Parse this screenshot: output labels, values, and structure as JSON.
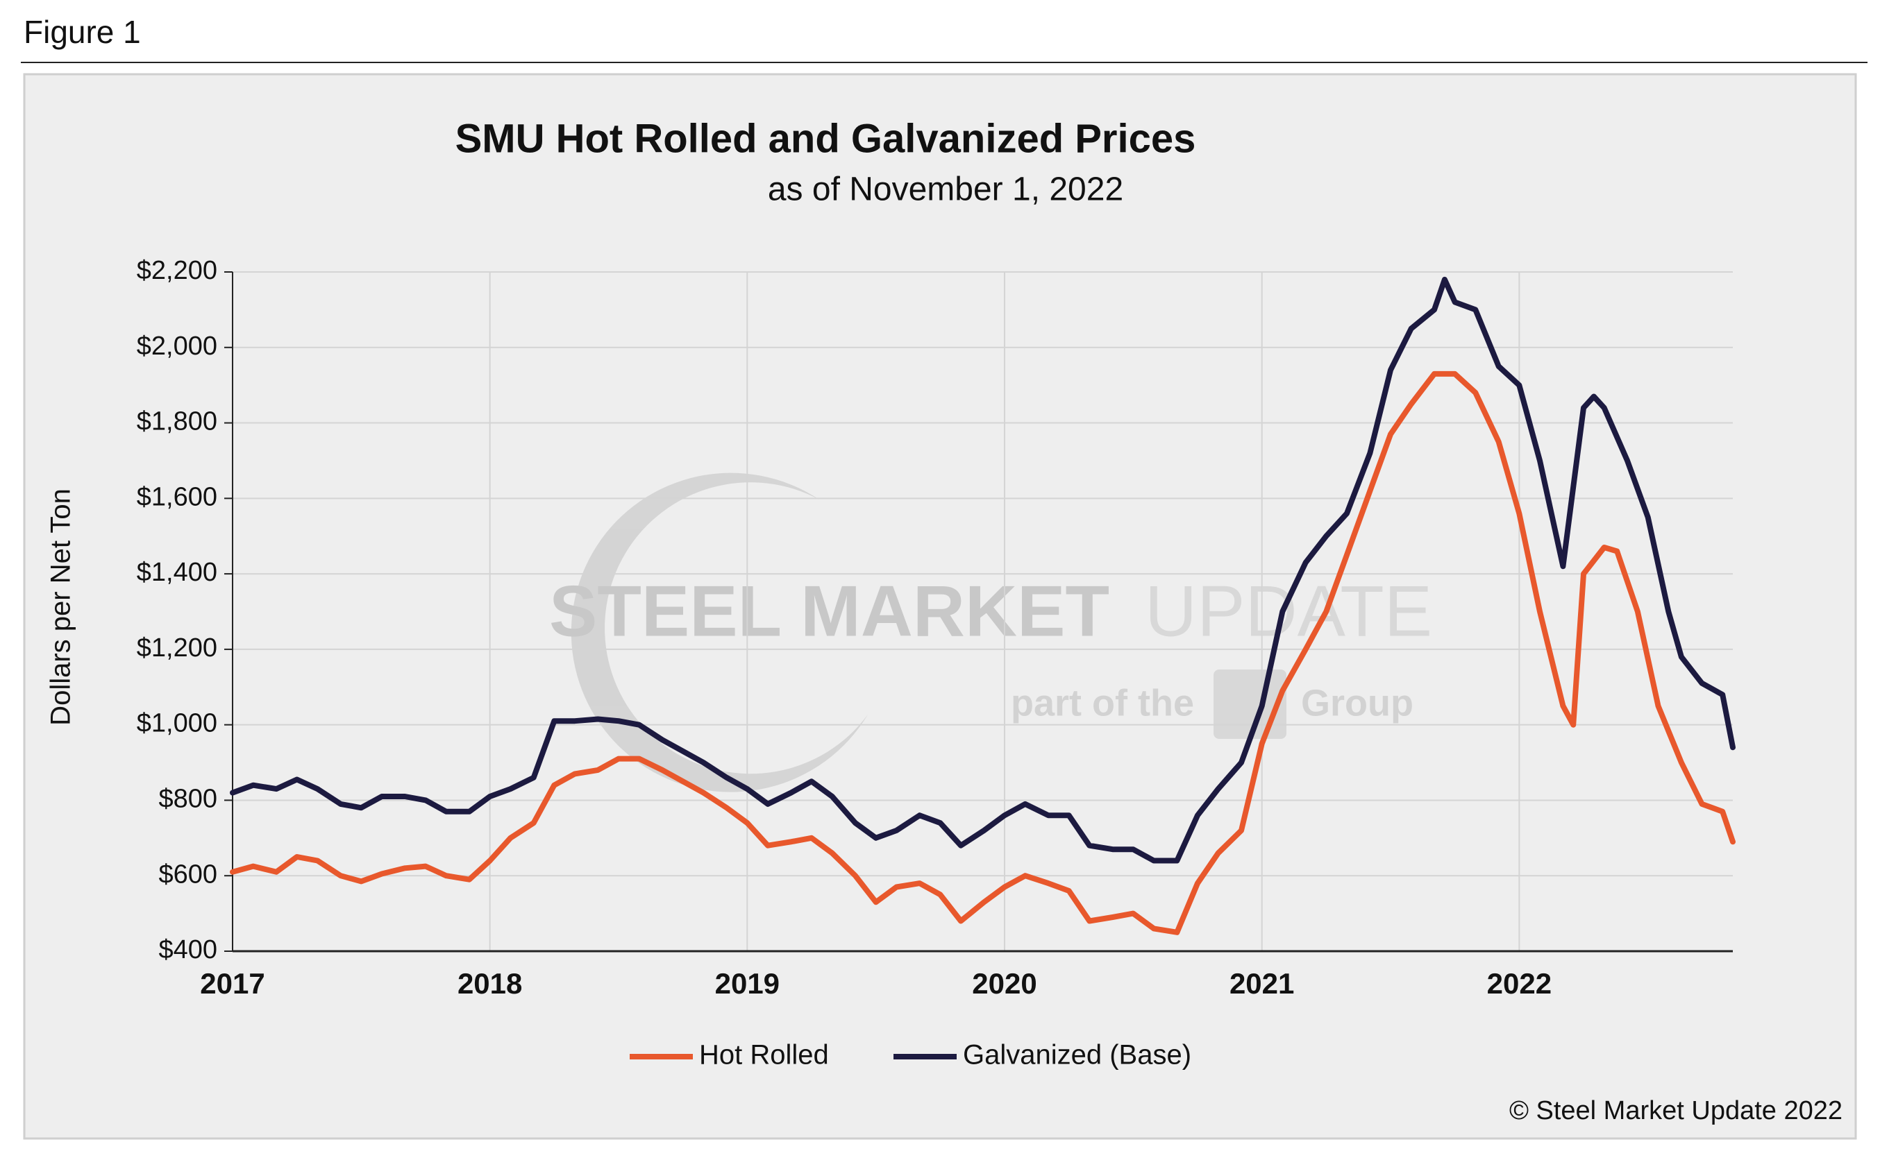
{
  "figure_label": "Figure 1",
  "credit": "© Steel Market Update 2022",
  "watermark": [
    "STEEL MARKET",
    "UPDATE"
  ],
  "watermark_tagline": [
    "part of the",
    "Group"
  ],
  "chart_data": {
    "type": "line",
    "title": "SMU Hot Rolled and Galvanized Prices",
    "subtitle": "as of November 1, 2022",
    "y_label": "Dollars per Net Ton",
    "xlim": [
      2017,
      2022.83
    ],
    "xticks": [
      2017,
      2018,
      2019,
      2020,
      2021,
      2022
    ],
    "ylim": [
      400,
      2200
    ],
    "yticks": [
      {
        "value": 400,
        "label": "$400"
      },
      {
        "value": 600,
        "label": "$600"
      },
      {
        "value": 800,
        "label": "$800"
      },
      {
        "value": 1000,
        "label": "$1,000"
      },
      {
        "value": 1200,
        "label": "$1,200"
      },
      {
        "value": 1400,
        "label": "$1,400"
      },
      {
        "value": 1600,
        "label": "$1,600"
      },
      {
        "value": 1800,
        "label": "$1,800"
      },
      {
        "value": 2000,
        "label": "$2,000"
      },
      {
        "value": 2200,
        "label": "$2,200"
      }
    ],
    "grid": true,
    "legend": "bottom",
    "series": [
      {
        "name": "Hot Rolled",
        "color": "#e8582c",
        "x": [
          2017.0,
          2017.08,
          2017.17,
          2017.25,
          2017.33,
          2017.42,
          2017.5,
          2017.58,
          2017.67,
          2017.75,
          2017.83,
          2017.92,
          2018.0,
          2018.08,
          2018.17,
          2018.25,
          2018.33,
          2018.42,
          2018.5,
          2018.58,
          2018.67,
          2018.75,
          2018.83,
          2018.92,
          2019.0,
          2019.08,
          2019.17,
          2019.25,
          2019.33,
          2019.42,
          2019.5,
          2019.58,
          2019.67,
          2019.75,
          2019.83,
          2019.92,
          2020.0,
          2020.08,
          2020.17,
          2020.25,
          2020.33,
          2020.42,
          2020.5,
          2020.58,
          2020.67,
          2020.75,
          2020.83,
          2020.92,
          2021.0,
          2021.08,
          2021.17,
          2021.25,
          2021.33,
          2021.42,
          2021.5,
          2021.58,
          2021.67,
          2021.75,
          2021.83,
          2021.92,
          2022.0,
          2022.08,
          2022.17,
          2022.21,
          2022.25,
          2022.33,
          2022.38,
          2022.46,
          2022.54,
          2022.63,
          2022.71,
          2022.75,
          2022.79,
          2022.83
        ],
        "values": [
          610,
          625,
          610,
          650,
          640,
          600,
          585,
          605,
          620,
          625,
          600,
          590,
          640,
          700,
          740,
          840,
          870,
          880,
          910,
          910,
          880,
          850,
          820,
          780,
          740,
          680,
          690,
          700,
          660,
          600,
          530,
          570,
          580,
          550,
          480,
          530,
          570,
          600,
          580,
          560,
          480,
          490,
          500,
          460,
          450,
          580,
          660,
          720,
          950,
          1090,
          1200,
          1300,
          1450,
          1620,
          1770,
          1850,
          1930,
          1930,
          1880,
          1750,
          1560,
          1300,
          1050,
          1000,
          1400,
          1470,
          1460,
          1300,
          1050,
          900,
          790,
          780,
          770,
          690
        ]
      },
      {
        "name": "Galvanized (Base)",
        "color": "#1c1a40",
        "x": [
          2017.0,
          2017.08,
          2017.17,
          2017.25,
          2017.33,
          2017.42,
          2017.5,
          2017.58,
          2017.67,
          2017.75,
          2017.83,
          2017.92,
          2018.0,
          2018.08,
          2018.17,
          2018.25,
          2018.33,
          2018.42,
          2018.5,
          2018.58,
          2018.67,
          2018.75,
          2018.83,
          2018.92,
          2019.0,
          2019.08,
          2019.17,
          2019.25,
          2019.33,
          2019.42,
          2019.5,
          2019.58,
          2019.67,
          2019.75,
          2019.83,
          2019.92,
          2020.0,
          2020.08,
          2020.17,
          2020.25,
          2020.33,
          2020.42,
          2020.5,
          2020.58,
          2020.67,
          2020.75,
          2020.83,
          2020.92,
          2021.0,
          2021.08,
          2021.17,
          2021.25,
          2021.33,
          2021.42,
          2021.5,
          2021.58,
          2021.67,
          2021.71,
          2021.75,
          2021.83,
          2021.92,
          2022.0,
          2022.08,
          2022.17,
          2022.25,
          2022.29,
          2022.33,
          2022.42,
          2022.5,
          2022.58,
          2022.63,
          2022.71,
          2022.79,
          2022.83
        ],
        "values": [
          820,
          840,
          830,
          855,
          830,
          790,
          780,
          810,
          810,
          800,
          770,
          770,
          810,
          830,
          860,
          1010,
          1010,
          1015,
          1010,
          1000,
          960,
          930,
          900,
          860,
          830,
          790,
          820,
          850,
          810,
          740,
          700,
          720,
          760,
          740,
          680,
          720,
          760,
          790,
          760,
          760,
          680,
          670,
          670,
          640,
          640,
          760,
          830,
          900,
          1050,
          1300,
          1430,
          1500,
          1560,
          1720,
          1940,
          2050,
          2100,
          2180,
          2120,
          2100,
          1950,
          1900,
          1700,
          1420,
          1840,
          1870,
          1840,
          1700,
          1550,
          1300,
          1180,
          1110,
          1080,
          940
        ]
      }
    ]
  }
}
